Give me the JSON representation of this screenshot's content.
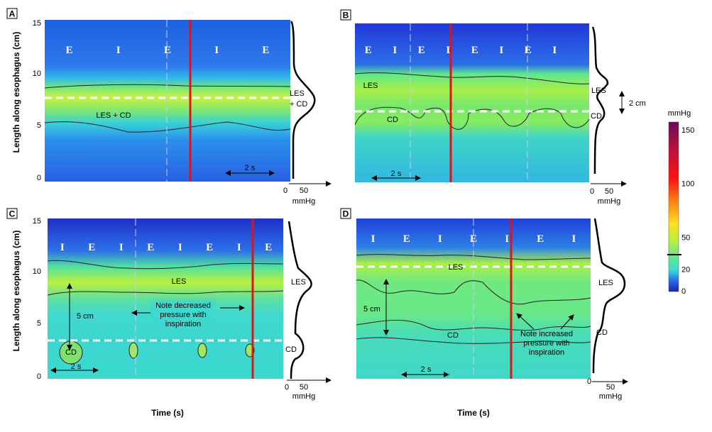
{
  "chart_data": {
    "type": "heatmap",
    "ylabel": "Length along esophagus (cm)",
    "xlabel": "Time (s)",
    "y_ticks": [
      "15",
      "10",
      "5",
      "0"
    ],
    "colorbar": {
      "title": "mmHg",
      "ticks": [
        "150",
        "100",
        "50",
        "20",
        "0"
      ],
      "stops": [
        {
          "value": 0,
          "color": "#1f1fb0"
        },
        {
          "value": 10,
          "color": "#2a6ee8"
        },
        {
          "value": 17,
          "color": "#33c8e8"
        },
        {
          "value": 20,
          "color": "#3ee0c8"
        },
        {
          "value": 30,
          "color": "#60e890"
        },
        {
          "value": 45,
          "color": "#b8f040"
        },
        {
          "value": 60,
          "color": "#ffe020"
        },
        {
          "value": 80,
          "color": "#ff8010"
        },
        {
          "value": 100,
          "color": "#ff1010"
        },
        {
          "value": 125,
          "color": "#c0103a"
        },
        {
          "value": 150,
          "color": "#6a0a5a"
        }
      ]
    },
    "panels": [
      {
        "id": "A",
        "phases": [
          "E",
          "I",
          "E",
          "I",
          "E"
        ],
        "labels": [
          "LES + CD"
        ],
        "profile_labels": [
          "LES",
          "+ CD"
        ],
        "scale_label": "2 s",
        "profile_axis": [
          "0",
          "50"
        ],
        "profile_unit": "mmHg"
      },
      {
        "id": "B",
        "phases": [
          "E",
          "I",
          "E",
          "I",
          "E",
          "I",
          "E",
          "I"
        ],
        "labels": [
          "LES",
          "CD"
        ],
        "profile_labels": [
          "LES",
          "CD"
        ],
        "span_label": "2 cm",
        "scale_label": "2 s",
        "profile_axis": [
          "0",
          "50"
        ],
        "profile_unit": "mmHg"
      },
      {
        "id": "C",
        "phases": [
          "I",
          "E",
          "I",
          "E",
          "I",
          "E",
          "I",
          "E"
        ],
        "labels": [
          "LES",
          "CD"
        ],
        "profile_labels": [
          "LES",
          "CD"
        ],
        "span_label": "5 cm",
        "note": [
          "Note decreased",
          "pressure with",
          "inspiration"
        ],
        "scale_label": "2 s",
        "profile_axis": [
          "0",
          "50"
        ],
        "profile_unit": "mmHg"
      },
      {
        "id": "D",
        "phases": [
          "I",
          "E",
          "I",
          "E",
          "I",
          "E",
          "I"
        ],
        "labels": [
          "LES",
          "CD"
        ],
        "profile_labels": [
          "LES",
          "CD"
        ],
        "span_label": "5 cm",
        "note": [
          "Note increased",
          "pressure with",
          "inspiration"
        ],
        "scale_label": "2 s",
        "profile_axis": [
          "0",
          "50"
        ],
        "profile_unit": "mmHg"
      }
    ]
  }
}
